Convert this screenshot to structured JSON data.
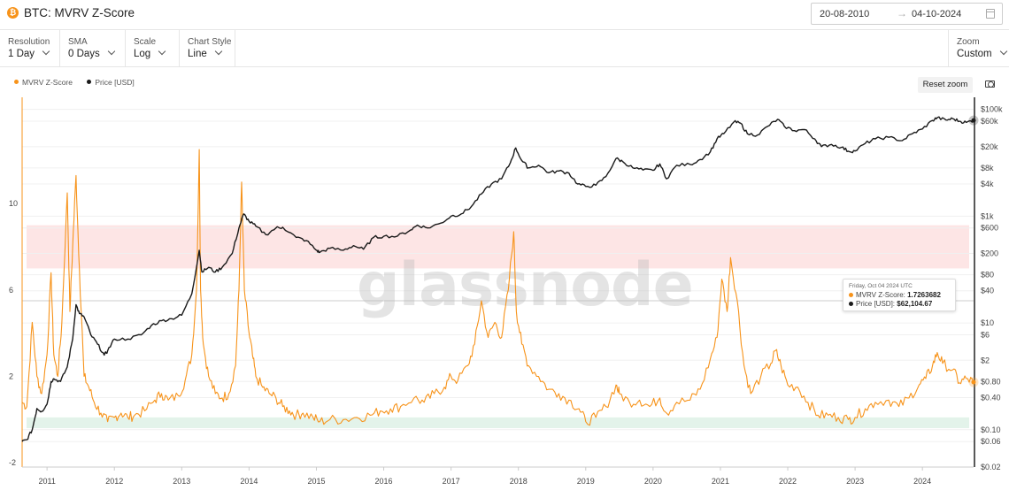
{
  "header": {
    "asset_icon": "bitcoin-icon",
    "title": "BTC: MVRV Z-Score",
    "date_from": "20-08-2010",
    "date_arrow": "→",
    "date_to": "04-10-2024",
    "calendar_icon": "calendar-icon"
  },
  "toolbar": {
    "resolution": {
      "label": "Resolution",
      "value": "1 Day"
    },
    "sma": {
      "label": "SMA",
      "value": "0 Days"
    },
    "scale": {
      "label": "Scale",
      "value": "Log"
    },
    "chart_style": {
      "label": "Chart Style",
      "value": "Line"
    },
    "zoom": {
      "label": "Zoom",
      "value": "Custom"
    }
  },
  "actions": {
    "reset_zoom": "Reset zoom",
    "screenshot_icon": "camera-icon"
  },
  "watermark": "glassnode",
  "tooltip": {
    "date": "Friday, Oct 04 2024 UTC",
    "zscore_label": "MVRV Z-Score:",
    "zscore_value": "1.7263682",
    "price_label": "Price [USD]:",
    "price_value": "$62,104.67"
  },
  "chart_data": {
    "type": "line",
    "xlim": [
      2010.63,
      2024.76
    ],
    "x_ticks": [
      "2011",
      "2012",
      "2013",
      "2014",
      "2015",
      "2016",
      "2017",
      "2018",
      "2019",
      "2020",
      "2021",
      "2022",
      "2023",
      "2024"
    ],
    "y_left": {
      "ticks": [
        "10",
        "6",
        "2",
        "-2"
      ],
      "tick_values": [
        10,
        6,
        2,
        -2
      ],
      "ylim": [
        -2.2,
        14.8
      ]
    },
    "y_right": {
      "scale": "log",
      "ticks": [
        "$100k",
        "$60k",
        "$20k",
        "$8k",
        "$4k",
        "$1k",
        "$600",
        "$200",
        "$80",
        "$40",
        "$10",
        "$6",
        "$2",
        "$0.80",
        "$0.40",
        "$0.10",
        "$0.06",
        "$0.02"
      ],
      "tick_values": [
        100000,
        60000,
        20000,
        8000,
        4000,
        1000,
        600,
        200,
        80,
        40,
        10,
        6,
        2,
        0.8,
        0.4,
        0.1,
        0.06,
        0.02
      ],
      "ylim": [
        0.02,
        150000
      ]
    },
    "bands": [
      {
        "name": "red-zone",
        "from": 7.0,
        "to": 9.0,
        "color": "#fde5e5"
      },
      {
        "name": "green-zone",
        "from": -0.4,
        "to": 0.1,
        "color": "#e3f3ea"
      }
    ],
    "hover_line": {
      "axis": "left",
      "value": 5.5
    },
    "legend_position": "top-left",
    "series": [
      {
        "name": "MVRV Z-Score",
        "color": "#f7931a",
        "axis": "left",
        "points": [
          [
            2010.63,
            0.8
          ],
          [
            2010.7,
            0.6
          ],
          [
            2010.78,
            4.5
          ],
          [
            2010.85,
            2.0
          ],
          [
            2010.92,
            1.2
          ],
          [
            2011.0,
            3.0
          ],
          [
            2011.06,
            6.8
          ],
          [
            2011.1,
            3.0
          ],
          [
            2011.16,
            2.0
          ],
          [
            2011.22,
            4.5
          ],
          [
            2011.3,
            10.5
          ],
          [
            2011.34,
            5.0
          ],
          [
            2011.38,
            8.0
          ],
          [
            2011.43,
            11.3
          ],
          [
            2011.48,
            7.0
          ],
          [
            2011.55,
            2.0
          ],
          [
            2011.62,
            1.5
          ],
          [
            2011.7,
            0.8
          ],
          [
            2011.8,
            0.3
          ],
          [
            2011.9,
            -0.1
          ],
          [
            2012.0,
            0.1
          ],
          [
            2012.1,
            0.3
          ],
          [
            2012.2,
            0.1
          ],
          [
            2012.3,
            0.2
          ],
          [
            2012.45,
            0.4
          ],
          [
            2012.6,
            0.9
          ],
          [
            2012.7,
            1.2
          ],
          [
            2012.8,
            0.9
          ],
          [
            2012.95,
            1.1
          ],
          [
            2013.05,
            1.8
          ],
          [
            2013.15,
            3.0
          ],
          [
            2013.22,
            6.0
          ],
          [
            2013.26,
            12.5
          ],
          [
            2013.28,
            6.0
          ],
          [
            2013.32,
            3.5
          ],
          [
            2013.4,
            2.0
          ],
          [
            2013.5,
            1.2
          ],
          [
            2013.6,
            1.0
          ],
          [
            2013.7,
            1.2
          ],
          [
            2013.8,
            2.5
          ],
          [
            2013.85,
            6.0
          ],
          [
            2013.89,
            11.0
          ],
          [
            2013.93,
            6.0
          ],
          [
            2014.0,
            4.0
          ],
          [
            2014.05,
            3.0
          ],
          [
            2014.1,
            2.0
          ],
          [
            2014.2,
            1.5
          ],
          [
            2014.3,
            1.2
          ],
          [
            2014.4,
            1.0
          ],
          [
            2014.5,
            0.6
          ],
          [
            2014.6,
            0.4
          ],
          [
            2014.7,
            0.2
          ],
          [
            2014.8,
            0.3
          ],
          [
            2014.95,
            0.1
          ],
          [
            2015.05,
            -0.1
          ],
          [
            2015.2,
            0.0
          ],
          [
            2015.4,
            0.0
          ],
          [
            2015.6,
            0.1
          ],
          [
            2015.8,
            0.2
          ],
          [
            2015.95,
            0.4
          ],
          [
            2016.1,
            0.5
          ],
          [
            2016.25,
            0.6
          ],
          [
            2016.45,
            1.0
          ],
          [
            2016.6,
            0.8
          ],
          [
            2016.75,
            1.2
          ],
          [
            2016.9,
            1.5
          ],
          [
            2017.0,
            2.0
          ],
          [
            2017.1,
            1.8
          ],
          [
            2017.25,
            2.5
          ],
          [
            2017.35,
            3.5
          ],
          [
            2017.45,
            5.5
          ],
          [
            2017.55,
            3.8
          ],
          [
            2017.65,
            4.5
          ],
          [
            2017.75,
            3.8
          ],
          [
            2017.85,
            6.0
          ],
          [
            2017.93,
            8.7
          ],
          [
            2017.97,
            5.0
          ],
          [
            2018.05,
            3.5
          ],
          [
            2018.15,
            2.5
          ],
          [
            2018.3,
            2.0
          ],
          [
            2018.45,
            1.4
          ],
          [
            2018.6,
            1.2
          ],
          [
            2018.75,
            0.9
          ],
          [
            2018.9,
            0.5
          ],
          [
            2019.0,
            -0.1
          ],
          [
            2019.15,
            0.1
          ],
          [
            2019.3,
            0.6
          ],
          [
            2019.45,
            1.6
          ],
          [
            2019.5,
            1.2
          ],
          [
            2019.65,
            0.8
          ],
          [
            2019.8,
            0.9
          ],
          [
            2019.95,
            0.6
          ],
          [
            2020.1,
            1.0
          ],
          [
            2020.2,
            0.3
          ],
          [
            2020.35,
            0.8
          ],
          [
            2020.55,
            0.9
          ],
          [
            2020.7,
            1.4
          ],
          [
            2020.85,
            2.8
          ],
          [
            2020.95,
            3.8
          ],
          [
            2021.02,
            6.5
          ],
          [
            2021.1,
            5.0
          ],
          [
            2021.15,
            7.5
          ],
          [
            2021.25,
            5.5
          ],
          [
            2021.35,
            2.5
          ],
          [
            2021.45,
            1.2
          ],
          [
            2021.6,
            2.0
          ],
          [
            2021.75,
            2.6
          ],
          [
            2021.82,
            3.2
          ],
          [
            2021.9,
            2.5
          ],
          [
            2022.0,
            1.6
          ],
          [
            2022.15,
            1.5
          ],
          [
            2022.3,
            0.8
          ],
          [
            2022.45,
            0.2
          ],
          [
            2022.6,
            0.2
          ],
          [
            2022.75,
            0.1
          ],
          [
            2022.9,
            0.0
          ],
          [
            2023.0,
            0.1
          ],
          [
            2023.15,
            0.5
          ],
          [
            2023.3,
            0.8
          ],
          [
            2023.5,
            0.9
          ],
          [
            2023.65,
            0.6
          ],
          [
            2023.8,
            1.0
          ],
          [
            2023.95,
            1.6
          ],
          [
            2024.05,
            1.9
          ],
          [
            2024.15,
            2.5
          ],
          [
            2024.22,
            3.1
          ],
          [
            2024.3,
            2.6
          ],
          [
            2024.45,
            2.3
          ],
          [
            2024.55,
            1.7
          ],
          [
            2024.65,
            1.9
          ],
          [
            2024.76,
            1.73
          ]
        ]
      },
      {
        "name": "Price [USD]",
        "color": "#1a1a1a",
        "axis": "right",
        "points": [
          [
            2010.63,
            0.06
          ],
          [
            2010.7,
            0.065
          ],
          [
            2010.78,
            0.1
          ],
          [
            2010.85,
            0.25
          ],
          [
            2010.92,
            0.22
          ],
          [
            2011.0,
            0.3
          ],
          [
            2011.06,
            0.8
          ],
          [
            2011.1,
            0.9
          ],
          [
            2011.2,
            0.8
          ],
          [
            2011.3,
            1.5
          ],
          [
            2011.38,
            5
          ],
          [
            2011.43,
            22
          ],
          [
            2011.48,
            15
          ],
          [
            2011.55,
            13
          ],
          [
            2011.65,
            6
          ],
          [
            2011.75,
            4
          ],
          [
            2011.85,
            2.5
          ],
          [
            2011.9,
            3
          ],
          [
            2012.0,
            5
          ],
          [
            2012.2,
            5
          ],
          [
            2012.4,
            6
          ],
          [
            2012.55,
            9
          ],
          [
            2012.7,
            11
          ],
          [
            2012.85,
            12
          ],
          [
            2013.0,
            14
          ],
          [
            2013.15,
            35
          ],
          [
            2013.26,
            230
          ],
          [
            2013.3,
            90
          ],
          [
            2013.4,
            110
          ],
          [
            2013.5,
            90
          ],
          [
            2013.6,
            110
          ],
          [
            2013.75,
            200
          ],
          [
            2013.85,
            600
          ],
          [
            2013.92,
            1100
          ],
          [
            2014.0,
            800
          ],
          [
            2014.1,
            650
          ],
          [
            2014.25,
            450
          ],
          [
            2014.4,
            600
          ],
          [
            2014.5,
            620
          ],
          [
            2014.7,
            400
          ],
          [
            2014.85,
            350
          ],
          [
            2015.0,
            230
          ],
          [
            2015.05,
            210
          ],
          [
            2015.2,
            250
          ],
          [
            2015.4,
            230
          ],
          [
            2015.55,
            280
          ],
          [
            2015.7,
            240
          ],
          [
            2015.85,
            400
          ],
          [
            2016.0,
            420
          ],
          [
            2016.2,
            420
          ],
          [
            2016.4,
            550
          ],
          [
            2016.5,
            680
          ],
          [
            2016.65,
            600
          ],
          [
            2016.85,
            740
          ],
          [
            2017.0,
            1000
          ],
          [
            2017.15,
            1100
          ],
          [
            2017.3,
            1500
          ],
          [
            2017.45,
            2600
          ],
          [
            2017.6,
            4000
          ],
          [
            2017.75,
            5000
          ],
          [
            2017.88,
            10000
          ],
          [
            2017.96,
            19000
          ],
          [
            2018.05,
            11000
          ],
          [
            2018.15,
            8000
          ],
          [
            2018.3,
            9000
          ],
          [
            2018.45,
            6500
          ],
          [
            2018.6,
            7000
          ],
          [
            2018.75,
            6400
          ],
          [
            2018.88,
            4000
          ],
          [
            2019.0,
            3600
          ],
          [
            2019.15,
            3800
          ],
          [
            2019.3,
            5500
          ],
          [
            2019.45,
            12000
          ],
          [
            2019.55,
            10500
          ],
          [
            2019.7,
            8000
          ],
          [
            2019.85,
            7300
          ],
          [
            2020.0,
            7200
          ],
          [
            2020.1,
            9500
          ],
          [
            2020.2,
            5000
          ],
          [
            2020.35,
            9000
          ],
          [
            2020.55,
            9300
          ],
          [
            2020.7,
            11500
          ],
          [
            2020.85,
            16000
          ],
          [
            2020.95,
            28000
          ],
          [
            2021.05,
            35000
          ],
          [
            2021.2,
            58000
          ],
          [
            2021.3,
            55000
          ],
          [
            2021.4,
            35000
          ],
          [
            2021.55,
            33000
          ],
          [
            2021.7,
            48000
          ],
          [
            2021.85,
            65000
          ],
          [
            2021.95,
            48000
          ],
          [
            2022.1,
            40000
          ],
          [
            2022.25,
            42000
          ],
          [
            2022.4,
            28000
          ],
          [
            2022.5,
            20000
          ],
          [
            2022.65,
            22000
          ],
          [
            2022.8,
            19500
          ],
          [
            2022.9,
            16500
          ],
          [
            2023.0,
            16600
          ],
          [
            2023.15,
            23000
          ],
          [
            2023.3,
            28000
          ],
          [
            2023.5,
            30000
          ],
          [
            2023.7,
            26000
          ],
          [
            2023.85,
            35000
          ],
          [
            2024.0,
            43000
          ],
          [
            2024.15,
            62000
          ],
          [
            2024.22,
            70000
          ],
          [
            2024.35,
            63000
          ],
          [
            2024.45,
            67000
          ],
          [
            2024.55,
            60000
          ],
          [
            2024.65,
            57000
          ],
          [
            2024.76,
            62104.67
          ]
        ]
      }
    ]
  }
}
